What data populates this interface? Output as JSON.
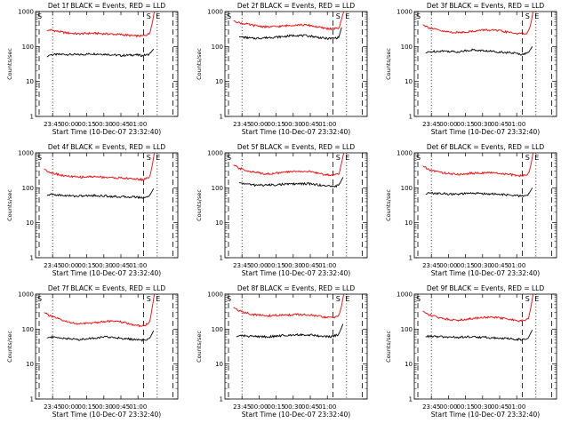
{
  "figure": {
    "xlabel": "Start Time (10-Dec-07 23:32:40)",
    "ylabel": "Counts/sec",
    "marker_S": "S",
    "marker_E": "E"
  },
  "chart_data": [
    {
      "type": "line",
      "title": "Det 1f BLACK = Events, RED = LLD",
      "xlabel": "Start Time (10-Dec-07 23:32:40)",
      "ylabel": "Counts/sec",
      "y_scale": "log",
      "ylim": [
        1,
        1000
      ],
      "y_ticks": [
        "1",
        "10",
        "100",
        "1000"
      ],
      "x_ticks": [
        "23:45",
        "00:00",
        "00:15",
        "00:30",
        "00:45",
        "01:00"
      ],
      "series": [
        {
          "name": "BLACK = Events",
          "color": "#000000",
          "x": [
            0.08,
            0.1,
            0.2,
            0.3,
            0.4,
            0.5,
            0.6,
            0.7,
            0.75,
            0.8,
            0.83
          ],
          "y": [
            50,
            58,
            60,
            58,
            62,
            60,
            55,
            58,
            55,
            60,
            85
          ]
        },
        {
          "name": "RED = LLD",
          "color": "#ff0000",
          "x": [
            0.08,
            0.1,
            0.2,
            0.3,
            0.4,
            0.5,
            0.6,
            0.7,
            0.75,
            0.8,
            0.82,
            0.835
          ],
          "y": [
            280,
            300,
            250,
            230,
            240,
            230,
            220,
            200,
            200,
            230,
            450,
            1000
          ]
        }
      ]
    },
    {
      "type": "line",
      "title": "Det 2f BLACK = Events, RED = LLD",
      "xlabel": "Start Time (10-Dec-07 23:32:40)",
      "ylabel": "Counts/sec",
      "y_scale": "log",
      "ylim": [
        1,
        1000
      ],
      "y_ticks": [
        "1",
        "10",
        "100",
        "1000"
      ],
      "x_ticks": [
        "23:45",
        "00:00",
        "00:15",
        "00:30",
        "00:45",
        "01:00"
      ],
      "series": [
        {
          "name": "BLACK = Events",
          "color": "#000000",
          "x": [
            0.1,
            0.15,
            0.2,
            0.3,
            0.4,
            0.5,
            0.6,
            0.7,
            0.75,
            0.8,
            0.82
          ],
          "y": [
            190,
            180,
            170,
            180,
            190,
            210,
            200,
            170,
            170,
            180,
            350
          ]
        },
        {
          "name": "RED = LLD",
          "color": "#ff0000",
          "x": [
            0.06,
            0.1,
            0.2,
            0.3,
            0.4,
            0.5,
            0.6,
            0.7,
            0.75,
            0.8,
            0.82,
            0.835
          ],
          "y": [
            550,
            480,
            400,
            360,
            380,
            420,
            400,
            330,
            320,
            330,
            600,
            1000
          ]
        }
      ]
    },
    {
      "type": "line",
      "title": "Det 3f BLACK = Events, RED = LLD",
      "xlabel": "Start Time (10-Dec-07 23:32:40)",
      "ylabel": "Counts/sec",
      "y_scale": "log",
      "ylim": [
        1,
        1000
      ],
      "y_ticks": [
        "1",
        "10",
        "100",
        "1000"
      ],
      "x_ticks": [
        "23:45",
        "00:00",
        "00:15",
        "00:30",
        "00:45",
        "01:00"
      ],
      "series": [
        {
          "name": "BLACK = Events",
          "color": "#000000",
          "x": [
            0.08,
            0.1,
            0.2,
            0.3,
            0.4,
            0.5,
            0.6,
            0.7,
            0.75,
            0.8,
            0.83
          ],
          "y": [
            65,
            70,
            75,
            70,
            80,
            75,
            70,
            65,
            60,
            65,
            100
          ]
        },
        {
          "name": "RED = LLD",
          "color": "#ff0000",
          "x": [
            0.06,
            0.1,
            0.2,
            0.3,
            0.4,
            0.5,
            0.6,
            0.7,
            0.75,
            0.8,
            0.82,
            0.835
          ],
          "y": [
            420,
            350,
            270,
            250,
            270,
            300,
            280,
            240,
            230,
            250,
            450,
            1000
          ]
        }
      ]
    },
    {
      "type": "line",
      "title": "Det 4f BLACK = Events, RED = LLD",
      "xlabel": "Start Time (10-Dec-07 23:32:40)",
      "ylabel": "Counts/sec",
      "y_scale": "log",
      "ylim": [
        1,
        1000
      ],
      "y_ticks": [
        "1",
        "10",
        "100",
        "1000"
      ],
      "x_ticks": [
        "23:45",
        "00:00",
        "00:15",
        "00:30",
        "00:45",
        "01:00"
      ],
      "series": [
        {
          "name": "BLACK = Events",
          "color": "#000000",
          "x": [
            0.08,
            0.1,
            0.2,
            0.3,
            0.4,
            0.5,
            0.6,
            0.7,
            0.75,
            0.8,
            0.83
          ],
          "y": [
            60,
            65,
            60,
            58,
            60,
            58,
            55,
            55,
            52,
            58,
            95
          ]
        },
        {
          "name": "RED = LLD",
          "color": "#ff0000",
          "x": [
            0.06,
            0.1,
            0.2,
            0.3,
            0.4,
            0.5,
            0.6,
            0.7,
            0.75,
            0.8,
            0.82,
            0.835
          ],
          "y": [
            350,
            280,
            220,
            200,
            210,
            200,
            190,
            180,
            170,
            200,
            420,
            1000
          ]
        }
      ]
    },
    {
      "type": "line",
      "title": "Det 5f BLACK = Events, RED = LLD",
      "xlabel": "Start Time (10-Dec-07 23:32:40)",
      "ylabel": "Counts/sec",
      "y_scale": "log",
      "ylim": [
        1,
        1000
      ],
      "y_ticks": [
        "1",
        "10",
        "100",
        "1000"
      ],
      "x_ticks": [
        "23:45",
        "00:00",
        "00:15",
        "00:30",
        "00:45",
        "01:00"
      ],
      "series": [
        {
          "name": "BLACK = Events",
          "color": "#000000",
          "x": [
            0.1,
            0.15,
            0.2,
            0.3,
            0.4,
            0.5,
            0.6,
            0.7,
            0.75,
            0.8,
            0.83
          ],
          "y": [
            140,
            130,
            120,
            120,
            125,
            130,
            130,
            115,
            110,
            115,
            200
          ]
        },
        {
          "name": "RED = LLD",
          "color": "#ff0000",
          "x": [
            0.06,
            0.1,
            0.2,
            0.3,
            0.4,
            0.5,
            0.6,
            0.7,
            0.75,
            0.8,
            0.82,
            0.835
          ],
          "y": [
            450,
            360,
            280,
            250,
            270,
            300,
            290,
            240,
            230,
            250,
            500,
            1000
          ]
        }
      ]
    },
    {
      "type": "line",
      "title": "Det 6f BLACK = Events, RED = LLD",
      "xlabel": "Start Time (10-Dec-07 23:32:40)",
      "ylabel": "Counts/sec",
      "y_scale": "log",
      "ylim": [
        1,
        1000
      ],
      "y_ticks": [
        "1",
        "10",
        "100",
        "1000"
      ],
      "x_ticks": [
        "23:45",
        "00:00",
        "00:15",
        "00:30",
        "00:45",
        "01:00"
      ],
      "series": [
        {
          "name": "BLACK = Events",
          "color": "#000000",
          "x": [
            0.08,
            0.1,
            0.2,
            0.3,
            0.4,
            0.5,
            0.6,
            0.7,
            0.75,
            0.8,
            0.83
          ],
          "y": [
            65,
            70,
            68,
            65,
            70,
            68,
            65,
            60,
            58,
            62,
            100
          ]
        },
        {
          "name": "RED = LLD",
          "color": "#ff0000",
          "x": [
            0.06,
            0.1,
            0.2,
            0.3,
            0.4,
            0.5,
            0.6,
            0.7,
            0.75,
            0.8,
            0.82,
            0.835
          ],
          "y": [
            420,
            330,
            270,
            240,
            260,
            270,
            260,
            230,
            220,
            240,
            450,
            1000
          ]
        }
      ]
    },
    {
      "type": "line",
      "title": "Det 7f BLACK = Events, RED = LLD",
      "xlabel": "Start Time (10-Dec-07 23:32:40)",
      "ylabel": "Counts/sec",
      "y_scale": "log",
      "ylim": [
        1,
        1000
      ],
      "y_ticks": [
        "1",
        "10",
        "100",
        "1000"
      ],
      "x_ticks": [
        "23:45",
        "00:00",
        "00:15",
        "00:30",
        "00:45",
        "01:00"
      ],
      "series": [
        {
          "name": "BLACK = Events",
          "color": "#000000",
          "x": [
            0.08,
            0.1,
            0.2,
            0.3,
            0.4,
            0.5,
            0.6,
            0.7,
            0.75,
            0.8,
            0.83
          ],
          "y": [
            55,
            60,
            55,
            50,
            55,
            60,
            55,
            50,
            48,
            52,
            90
          ]
        },
        {
          "name": "RED = LLD",
          "color": "#ff0000",
          "x": [
            0.06,
            0.1,
            0.2,
            0.3,
            0.4,
            0.5,
            0.6,
            0.7,
            0.75,
            0.8,
            0.82,
            0.835
          ],
          "y": [
            300,
            240,
            170,
            140,
            150,
            170,
            160,
            130,
            120,
            150,
            400,
            1000
          ]
        }
      ]
    },
    {
      "type": "line",
      "title": "Det 8f BLACK = Events, RED = LLD",
      "xlabel": "Start Time (10-Dec-07 23:32:40)",
      "ylabel": "Counts/sec",
      "y_scale": "log",
      "ylim": [
        1,
        1000
      ],
      "y_ticks": [
        "1",
        "10",
        "100",
        "1000"
      ],
      "x_ticks": [
        "23:45",
        "00:00",
        "00:15",
        "00:30",
        "00:45",
        "01:00"
      ],
      "series": [
        {
          "name": "BLACK = Events",
          "color": "#000000",
          "x": [
            0.08,
            0.1,
            0.2,
            0.3,
            0.4,
            0.5,
            0.6,
            0.7,
            0.75,
            0.8,
            0.83
          ],
          "y": [
            60,
            65,
            62,
            60,
            65,
            70,
            68,
            62,
            60,
            70,
            140
          ]
        },
        {
          "name": "RED = LLD",
          "color": "#ff0000",
          "x": [
            0.06,
            0.1,
            0.2,
            0.3,
            0.4,
            0.5,
            0.6,
            0.7,
            0.75,
            0.8,
            0.82,
            0.835
          ],
          "y": [
            420,
            330,
            260,
            240,
            250,
            260,
            250,
            220,
            210,
            240,
            450,
            1000
          ]
        }
      ]
    },
    {
      "type": "line",
      "title": "Det 9f BLACK = Events, RED = LLD",
      "xlabel": "Start Time (10-Dec-07 23:32:40)",
      "ylabel": "Counts/sec",
      "y_scale": "log",
      "ylim": [
        1,
        1000
      ],
      "y_ticks": [
        "1",
        "10",
        "100",
        "1000"
      ],
      "x_ticks": [
        "23:45",
        "00:00",
        "00:15",
        "00:30",
        "00:45",
        "01:00"
      ],
      "series": [
        {
          "name": "BLACK = Events",
          "color": "#000000",
          "x": [
            0.08,
            0.1,
            0.2,
            0.3,
            0.4,
            0.5,
            0.6,
            0.7,
            0.75,
            0.8,
            0.83
          ],
          "y": [
            60,
            62,
            60,
            58,
            60,
            58,
            55,
            52,
            50,
            55,
            95
          ]
        },
        {
          "name": "RED = LLD",
          "color": "#ff0000",
          "x": [
            0.06,
            0.1,
            0.2,
            0.3,
            0.4,
            0.5,
            0.6,
            0.7,
            0.75,
            0.8,
            0.82,
            0.835
          ],
          "y": [
            330,
            260,
            200,
            180,
            200,
            220,
            210,
            180,
            170,
            190,
            420,
            1000
          ]
        }
      ]
    }
  ]
}
